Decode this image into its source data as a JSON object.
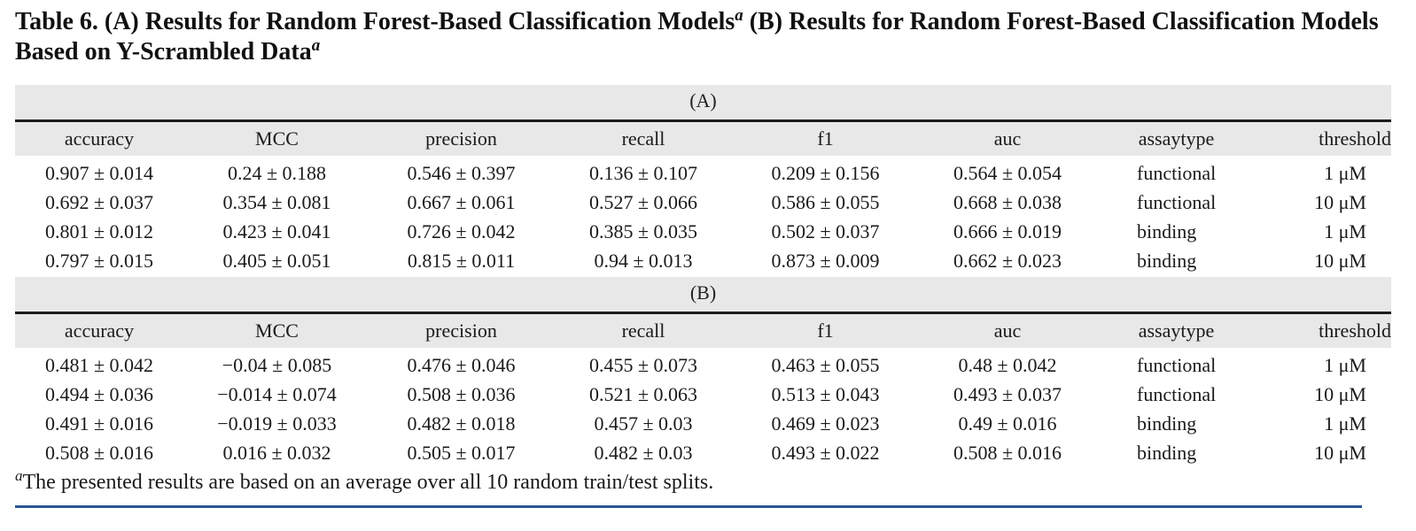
{
  "caption": {
    "part1": "Table 6. (A) Results for Random Forest-Based Classification Models",
    "mark1": "a",
    "part2": " (B) Results for Random Forest-Based Classification Models Based on Y-Scrambled Data",
    "mark2": "a"
  },
  "columns": [
    "accuracy",
    "MCC",
    "precision",
    "recall",
    "f1",
    "auc",
    "assaytype",
    "threshold"
  ],
  "sections": [
    {
      "label": "(A)",
      "rows": [
        [
          "0.907 ± 0.014",
          "0.24 ± 0.188",
          "0.546 ± 0.397",
          "0.136 ± 0.107",
          "0.209 ± 0.156",
          "0.564 ± 0.054",
          "functional",
          "1 μM"
        ],
        [
          "0.692 ± 0.037",
          "0.354 ± 0.081",
          "0.667 ± 0.061",
          "0.527 ± 0.066",
          "0.586 ± 0.055",
          "0.668 ± 0.038",
          "functional",
          "10 μM"
        ],
        [
          "0.801 ± 0.012",
          "0.423 ± 0.041",
          "0.726 ± 0.042",
          "0.385 ± 0.035",
          "0.502 ± 0.037",
          "0.666 ± 0.019",
          "binding",
          "1 μM"
        ],
        [
          "0.797 ± 0.015",
          "0.405 ± 0.051",
          "0.815 ± 0.011",
          "0.94 ± 0.013",
          "0.873 ± 0.009",
          "0.662 ± 0.023",
          "binding",
          "10 μM"
        ]
      ]
    },
    {
      "label": "(B)",
      "rows": [
        [
          "0.481 ± 0.042",
          "−0.04 ± 0.085",
          "0.476 ± 0.046",
          "0.455 ± 0.073",
          "0.463 ± 0.055",
          "0.48 ± 0.042",
          "functional",
          "1 μM"
        ],
        [
          "0.494 ± 0.036",
          "−0.014 ± 0.074",
          "0.508 ± 0.036",
          "0.521 ± 0.063",
          "0.513 ± 0.043",
          "0.493 ± 0.037",
          "functional",
          "10 μM"
        ],
        [
          "0.491 ± 0.016",
          "−0.019 ± 0.033",
          "0.482 ± 0.018",
          "0.457 ± 0.03",
          "0.469 ± 0.023",
          "0.49 ± 0.016",
          "binding",
          "1 μM"
        ],
        [
          "0.508 ± 0.016",
          "0.016 ± 0.032",
          "0.505 ± 0.017",
          "0.482 ± 0.03",
          "0.493 ± 0.022",
          "0.508 ± 0.016",
          "binding",
          "10 μM"
        ]
      ]
    }
  ],
  "footnote": {
    "mark": "a",
    "text": "The presented results are based on an average over all 10 random train/test splits."
  },
  "colors": {
    "header_band": "#e8e8e8",
    "rule": "#1c1c1c",
    "bottom_rule": "#2b5597"
  }
}
